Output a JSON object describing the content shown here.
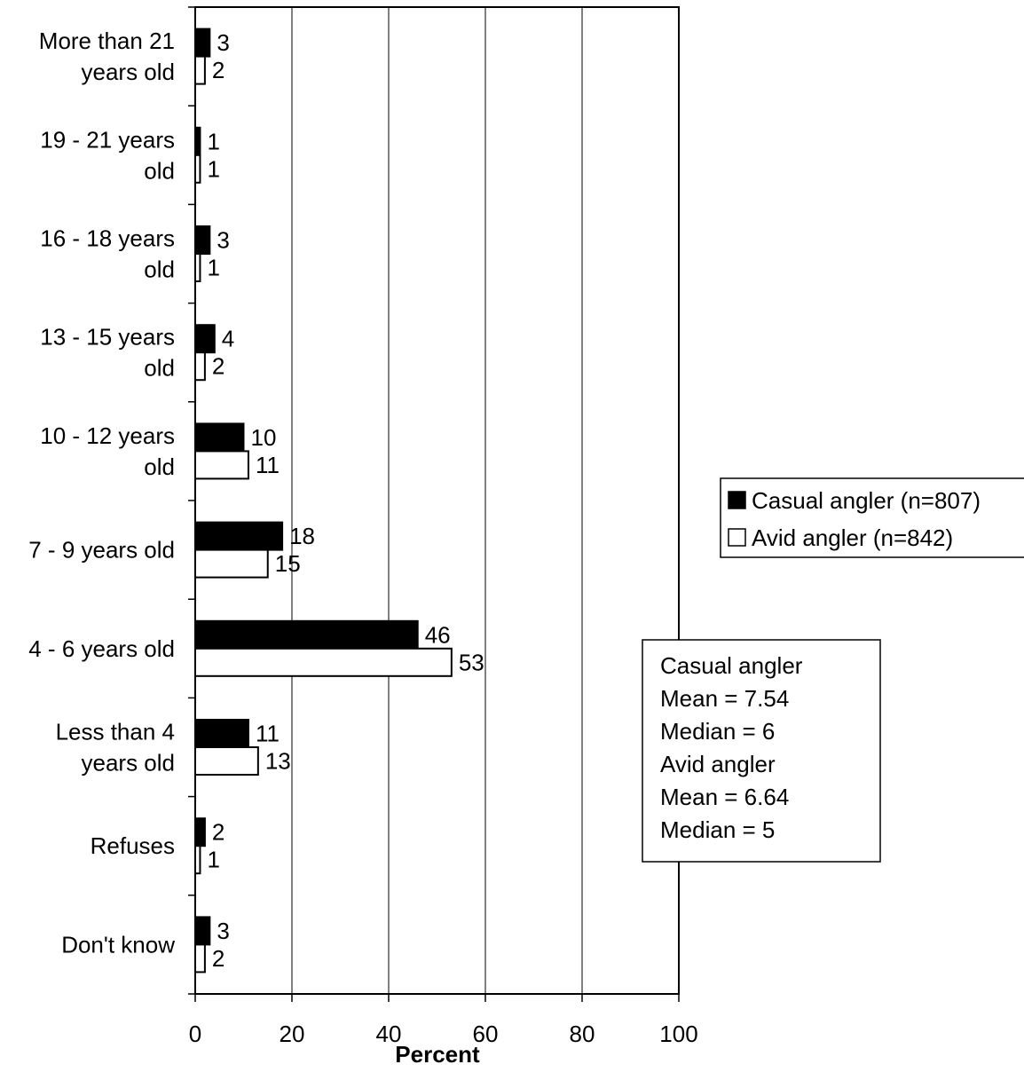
{
  "chart_data": {
    "type": "bar",
    "orientation": "horizontal",
    "categories": [
      [
        "More than 21",
        "years old"
      ],
      [
        "19 - 21 years",
        "old"
      ],
      [
        "16 - 18 years",
        "old"
      ],
      [
        "13 - 15 years",
        "old"
      ],
      [
        "10 - 12 years",
        "old"
      ],
      [
        "7 - 9 years old"
      ],
      [
        "4 - 6 years old"
      ],
      [
        "Less than 4",
        "years old"
      ],
      [
        "Refuses"
      ],
      [
        "Don't know"
      ]
    ],
    "series": [
      {
        "name": "Casual angler (n=807)",
        "values": [
          3,
          1,
          3,
          4,
          10,
          18,
          46,
          11,
          2,
          3
        ],
        "color": "#000000"
      },
      {
        "name": "Avid angler (n=842)",
        "values": [
          2,
          1,
          1,
          2,
          11,
          15,
          53,
          13,
          1,
          2
        ],
        "color": "#ffffff"
      }
    ],
    "xlabel": "Percent",
    "xlim": [
      0,
      100
    ],
    "xticks": [
      0,
      20,
      40,
      60,
      80,
      100
    ],
    "grid": true,
    "legend_position": "right",
    "stats_box": [
      "Casual angler",
      "Mean = 7.54",
      "Median = 6",
      "Avid angler",
      "Mean = 6.64",
      "Median = 5"
    ]
  }
}
